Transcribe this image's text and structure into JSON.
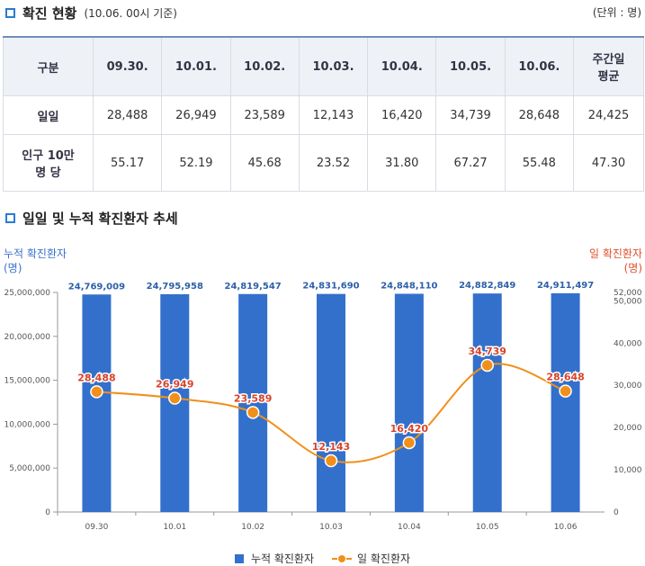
{
  "section1": {
    "title": "확진 현황",
    "subtitle": "(10.06. 00시 기준)",
    "unit": "(단위 : 명)"
  },
  "table": {
    "headers": [
      "구분",
      "09.30.",
      "10.01.",
      "10.02.",
      "10.03.",
      "10.04.",
      "10.05.",
      "10.06.",
      "주간일 평균"
    ],
    "rows": [
      {
        "label": "일일",
        "values": [
          "28,488",
          "26,949",
          "23,589",
          "12,143",
          "16,420",
          "34,739",
          "28,648",
          "24,425"
        ]
      },
      {
        "label": "인구 10만 명 당",
        "values": [
          "55.17",
          "52.19",
          "45.68",
          "23.52",
          "31.80",
          "67.27",
          "55.48",
          "47.30"
        ]
      }
    ]
  },
  "section2": {
    "title": "일일 및 누적 확진환자 추세"
  },
  "chart_data": {
    "type": "bar",
    "categories": [
      "09.30",
      "10.01",
      "10.02",
      "10.03",
      "10.04",
      "10.05",
      "10.06"
    ],
    "series": [
      {
        "name": "누적 확진환자",
        "type": "bar",
        "axis": "left",
        "color": "#3370cc",
        "values": [
          24769009,
          24795958,
          24819547,
          24831690,
          24848110,
          24882849,
          24911497
        ],
        "labels": [
          "24,769,009",
          "24,795,958",
          "24,819,547",
          "24,831,690",
          "24,848,110",
          "24,882,849",
          "24,911,497"
        ]
      },
      {
        "name": "일 확진환자",
        "type": "line",
        "axis": "right",
        "color": "#f0901a",
        "values": [
          28488,
          26949,
          23589,
          12143,
          16420,
          34739,
          28648
        ],
        "labels": [
          "28,488",
          "26,949",
          "23,589",
          "12,143",
          "16,420",
          "34,739",
          "28,648"
        ]
      }
    ],
    "y_left": {
      "label": "누적 확진환자",
      "unit": "(명)",
      "range": [
        0,
        25000000
      ],
      "ticks": [
        0,
        5000000,
        10000000,
        15000000,
        20000000,
        25000000
      ],
      "tick_labels": [
        "0",
        "5,000,000",
        "10,000,000",
        "15,000,000",
        "20,000,000",
        "25,000,000"
      ]
    },
    "y_right": {
      "label": "일 확진환자",
      "unit": "(명)",
      "range": [
        0,
        52000
      ],
      "ticks": [
        0,
        10000,
        20000,
        30000,
        40000,
        50000,
        52000
      ],
      "tick_labels": [
        "0",
        "10,000",
        "20,000",
        "30,000",
        "40,000",
        "50,000",
        "52,000"
      ]
    },
    "legend": [
      "누적 확진환자",
      "일 확진환자"
    ],
    "colors": {
      "bar": "#3370cc",
      "line": "#f0901a",
      "bar_label": "#2d5fa8",
      "line_label": "#d9432a"
    }
  }
}
